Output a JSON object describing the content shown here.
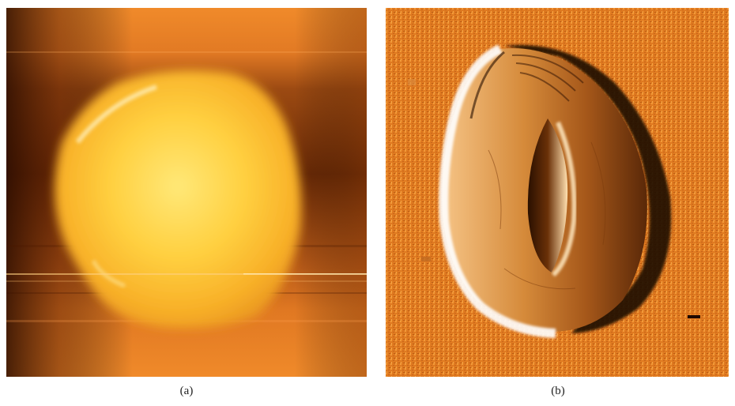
{
  "figure": {
    "panels": [
      {
        "label": "(a)",
        "image": "afm-height-map",
        "colormap": [
          "#3a1200",
          "#9c4a10",
          "#f08a2a",
          "#ffd040",
          "#fff0b0"
        ]
      },
      {
        "label": "(b)",
        "image": "afm-amplitude-map",
        "colormap": [
          "#1a0800",
          "#7a3a08",
          "#e07a20",
          "#f7b860",
          "#ffffff"
        ]
      }
    ]
  }
}
